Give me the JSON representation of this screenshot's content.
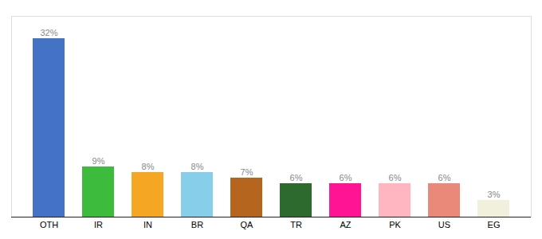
{
  "chart_data": {
    "type": "bar",
    "categories": [
      "OTH",
      "IR",
      "IN",
      "BR",
      "QA",
      "TR",
      "AZ",
      "PK",
      "US",
      "EG"
    ],
    "values": [
      32,
      9,
      8,
      8,
      7,
      6,
      6,
      6,
      6,
      3
    ],
    "value_labels": [
      "32%",
      "9%",
      "8%",
      "8%",
      "7%",
      "6%",
      "6%",
      "6%",
      "6%",
      "3%"
    ],
    "colors": [
      "#4472c4",
      "#3dbb3d",
      "#f5a623",
      "#87ceeb",
      "#b5651d",
      "#2d6a2d",
      "#ff1493",
      "#ffb6c1",
      "#e8897a",
      "#f0f0dc"
    ],
    "ylim": [
      0,
      36
    ],
    "grid": false,
    "data_labels": true,
    "tick_labels": "x"
  }
}
